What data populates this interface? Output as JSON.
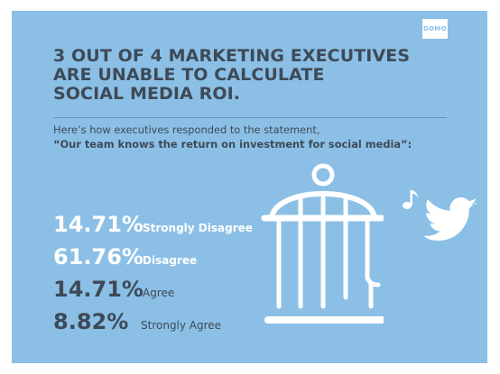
{
  "brand": {
    "logo_text": "DOMO"
  },
  "title": {
    "line1": "3 OUT OF 4 MARKETING EXECUTIVES",
    "line2": "ARE UNABLE TO CALCULATE",
    "line3": "SOCIAL MEDIA ROI."
  },
  "intro": {
    "line1": "Here’s how executives responded to the statement,",
    "line2": "“Our team knows the return on investment for social media”:"
  },
  "colors": {
    "background": "#8bbfe6",
    "text_dark": "#3e4a57",
    "text_light": "#ffffff"
  },
  "icons": [
    "birdcage-icon",
    "music-note-icon",
    "twitter-bird-icon"
  ],
  "chart_data": {
    "type": "table",
    "title": "3 OUT OF 4 MARKETING EXECUTIVES ARE UNABLE TO CALCULATE SOCIAL MEDIA ROI.",
    "categories": [
      "Strongly Disagree",
      "Disagree",
      "Agree",
      "Strongly Agree"
    ],
    "values": [
      14.71,
      61.76,
      14.71,
      8.82
    ],
    "rows": [
      {
        "percent": "14.71%",
        "label": "Strongly Disagree"
      },
      {
        "percent": "61.76%",
        "label": "Disagree"
      },
      {
        "percent": "14.71%",
        "label": "Agree"
      },
      {
        "percent": "8.82%",
        "label": "Strongly Agree"
      }
    ]
  }
}
